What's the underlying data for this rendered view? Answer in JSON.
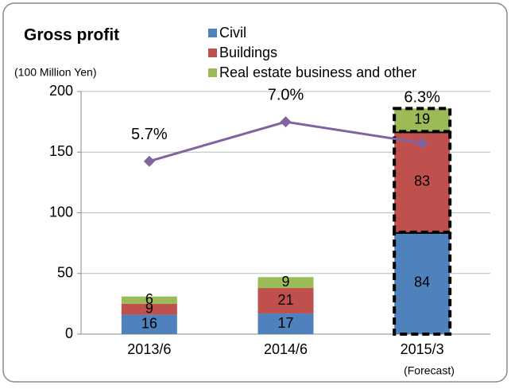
{
  "chart_data": {
    "type": "bar",
    "title": "Gross profit",
    "y_axis_label": "(100 Million Yen)",
    "annotation": "(Forecast)",
    "categories": [
      "2013/6",
      "2014/6",
      "2015/3"
    ],
    "series": [
      {
        "name": "Civil",
        "color": "#4f81bd",
        "values": [
          16,
          17,
          84
        ]
      },
      {
        "name": "Buildings",
        "color": "#c0504d",
        "values": [
          9,
          21,
          83
        ]
      },
      {
        "name": "Real estate business and other",
        "color": "#9bbb59",
        "values": [
          6,
          9,
          19
        ]
      }
    ],
    "line": {
      "color": "#8064a2",
      "axis": "y2",
      "values": [
        5.7,
        7.0,
        6.3
      ],
      "value_labels": [
        "5.7%",
        "7.0%",
        "6.3%"
      ]
    },
    "ylim": [
      0,
      200
    ],
    "yticks": [
      0,
      50,
      100,
      150,
      200
    ],
    "y2lim": [
      0,
      8
    ],
    "grid": true,
    "stacked": true
  }
}
